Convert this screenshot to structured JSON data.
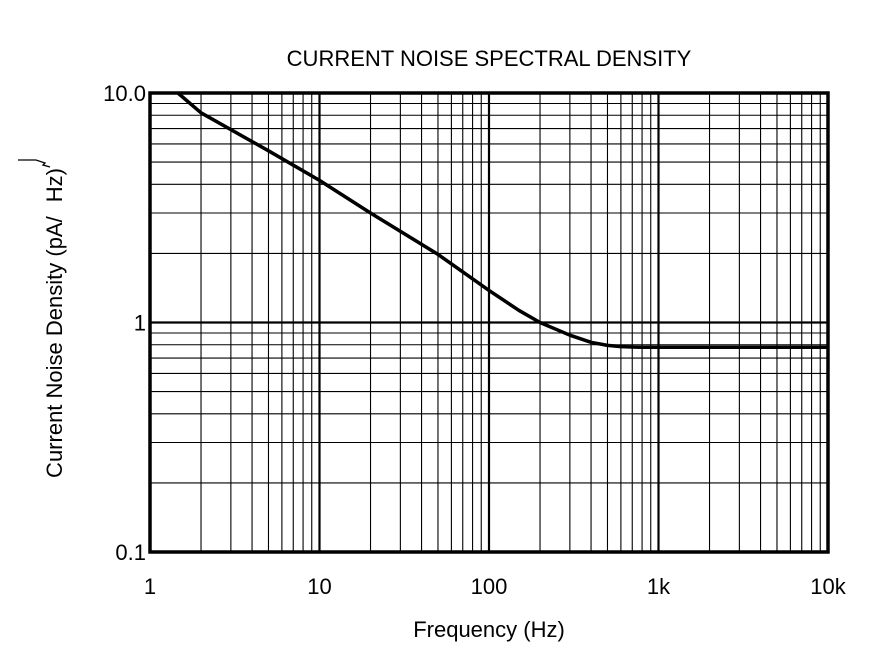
{
  "chart_data": {
    "type": "line",
    "title": "CURRENT NOISE SPECTRAL DENSITY",
    "xlabel": "Frequency (Hz)",
    "ylabel": "Current Noise Density (pA/√Hz)",
    "ylabel_main": "Current Noise Density (pA/",
    "ylabel_radicand": "Hz",
    "ylabel_close": ")",
    "xscale": "log",
    "yscale": "log",
    "xlim": [
      1,
      10000
    ],
    "ylim": [
      0.1,
      10
    ],
    "grid": true,
    "x_ticks": [
      {
        "value": 1,
        "label": "1"
      },
      {
        "value": 10,
        "label": "10"
      },
      {
        "value": 100,
        "label": "100"
      },
      {
        "value": 1000,
        "label": "1k"
      },
      {
        "value": 10000,
        "label": "10k"
      }
    ],
    "y_ticks": [
      {
        "value": 0.1,
        "label": "0.1"
      },
      {
        "value": 1,
        "label": "1"
      },
      {
        "value": 10,
        "label": "10.0"
      }
    ],
    "series": [
      {
        "color": "#000000",
        "x": [
          1.46,
          2,
          5,
          10,
          20,
          50,
          100,
          150,
          200,
          300,
          400,
          500,
          600,
          800,
          1000,
          10000
        ],
        "y": [
          10,
          8.2,
          5.6,
          4.16,
          3.0,
          1.98,
          1.38,
          1.13,
          1.0,
          0.88,
          0.82,
          0.795,
          0.785,
          0.78,
          0.78,
          0.78
        ]
      }
    ]
  }
}
